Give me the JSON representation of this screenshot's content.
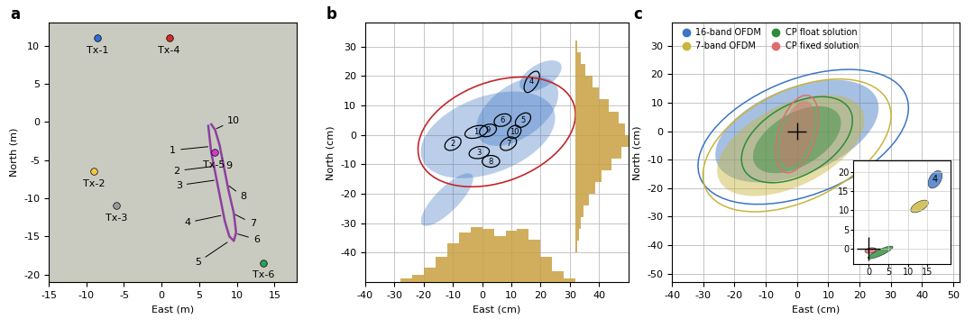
{
  "chart_data": [
    {
      "panel": "a",
      "type": "map",
      "xlabel": "East (m)",
      "ylabel": "North (m)",
      "xlim": [
        -15,
        18
      ],
      "ylim": [
        -21,
        13
      ],
      "xticks": [
        -15,
        -10,
        -5,
        0,
        5,
        10,
        15
      ],
      "yticks": [
        -20,
        -15,
        -10,
        -5,
        0,
        5,
        10
      ],
      "transmitters": [
        {
          "name": "Tx-1",
          "x": -8.5,
          "y": 11,
          "color": "#2e6fd6"
        },
        {
          "name": "Tx-4",
          "x": 1,
          "y": 11,
          "color": "#d62828"
        },
        {
          "name": "Tx-5",
          "x": 7,
          "y": -4,
          "color": "#d43ad4"
        },
        {
          "name": "Tx-2",
          "x": -9,
          "y": -6.5,
          "color": "#f2c744"
        },
        {
          "name": "Tx-3",
          "x": -6,
          "y": -11,
          "color": "#9a9a9a"
        },
        {
          "name": "Tx-6",
          "x": 13.5,
          "y": -18.5,
          "color": "#2ca05a"
        }
      ],
      "track": {
        "color": "#8e3fa0",
        "x": [
          6.2,
          6.6,
          7.2,
          7.8,
          8.4,
          9.0,
          9.6,
          9.9,
          9.6,
          8.9,
          8.3,
          7.7,
          7.1,
          6.6
        ],
        "y": [
          -0.5,
          -4,
          -7,
          -10,
          -13,
          -15,
          -15.6,
          -14.5,
          -12,
          -9,
          -6,
          -3,
          -1,
          -0.3
        ]
      },
      "track_labels": [
        {
          "text": "1",
          "x": 1.5,
          "y": -3.7,
          "target": [
            6.5,
            -3.2
          ]
        },
        {
          "text": "2",
          "x": 2.0,
          "y": -6.4,
          "target": [
            7.0,
            -5.8
          ]
        },
        {
          "text": "3",
          "x": 2.3,
          "y": -8.3,
          "target": [
            7.3,
            -7.6
          ]
        },
        {
          "text": "4",
          "x": 3.4,
          "y": -13.2,
          "target": [
            8.2,
            -12.2
          ]
        },
        {
          "text": "5",
          "x": 4.8,
          "y": -18.4,
          "target": [
            9.0,
            -15.6
          ]
        },
        {
          "text": "6",
          "x": 12.6,
          "y": -15.4,
          "target": [
            9.8,
            -14.6
          ]
        },
        {
          "text": "7",
          "x": 12.1,
          "y": -13.3,
          "target": [
            9.5,
            -12.0
          ]
        },
        {
          "text": "8",
          "x": 10.9,
          "y": -9.8,
          "target": [
            8.7,
            -8.2
          ]
        },
        {
          "text": "9",
          "x": 9.0,
          "y": -5.8,
          "target": [
            8.0,
            -4.8
          ]
        },
        {
          "text": "10",
          "x": 9.6,
          "y": 0.2,
          "target": [
            7.0,
            -1.0
          ]
        }
      ]
    },
    {
      "panel": "b",
      "type": "scatter",
      "xlabel": "East (cm)",
      "ylabel": "North (cm)",
      "xlim": [
        -40,
        50
      ],
      "ylim": [
        -50,
        38
      ],
      "xticks": [
        -40,
        -30,
        -20,
        -10,
        0,
        10,
        20,
        30,
        40
      ],
      "yticks": [
        -40,
        -30,
        -20,
        -10,
        0,
        10,
        20,
        30
      ],
      "grid": true,
      "color": "#3b75c4",
      "cloud": [
        {
          "center": [
            2,
            0
          ],
          "semi_axes": [
            24,
            13
          ],
          "angle": 20
        },
        {
          "center": [
            12,
            8
          ],
          "semi_axes": [
            16,
            9
          ],
          "angle": 35
        },
        {
          "center": [
            -12,
            -22
          ],
          "semi_axes": [
            12,
            4
          ],
          "angle": 45
        },
        {
          "center": [
            20,
            20
          ],
          "semi_axes": [
            8,
            4
          ],
          "angle": 30
        }
      ],
      "clusters": [
        {
          "label": "1",
          "center": [
            -2,
            1
          ],
          "semi_axes": [
            4,
            2
          ],
          "angle": 15
        },
        {
          "label": "2",
          "center": [
            -10,
            -3
          ],
          "semi_axes": [
            3,
            2
          ],
          "angle": 30
        },
        {
          "label": "3",
          "center": [
            -1,
            -6
          ],
          "semi_axes": [
            3.5,
            2
          ],
          "angle": 10
        },
        {
          "label": "4",
          "center": [
            17,
            18
          ],
          "semi_axes": [
            4,
            2
          ],
          "angle": 60
        },
        {
          "label": "5",
          "center": [
            14,
            5
          ],
          "semi_axes": [
            3,
            2
          ],
          "angle": 40
        },
        {
          "label": "6",
          "center": [
            7,
            5
          ],
          "semi_axes": [
            3,
            2
          ],
          "angle": 20
        },
        {
          "label": "7",
          "center": [
            9,
            -3
          ],
          "semi_axes": [
            3,
            2
          ],
          "angle": 30
        },
        {
          "label": "8",
          "center": [
            3,
            -9
          ],
          "semi_axes": [
            3,
            2
          ],
          "angle": 0
        },
        {
          "label": "9",
          "center": [
            2,
            1.5
          ],
          "semi_axes": [
            3,
            2
          ],
          "angle": 20
        },
        {
          "label": "10",
          "center": [
            11,
            1
          ],
          "semi_axes": [
            2.5,
            2
          ],
          "angle": 40
        }
      ],
      "overall_ellipse": {
        "center": [
          5,
          1
        ],
        "semi_axes": [
          28,
          17
        ],
        "angle": 20,
        "color": "#c0282d"
      },
      "hist_color": "#c8a040",
      "hist_x": {
        "bins": [
          -28,
          -24,
          -20,
          -16,
          -12,
          -8,
          -4,
          0,
          4,
          8,
          12,
          16,
          20,
          24,
          28,
          32
        ],
        "counts": [
          2,
          4,
          8,
          14,
          22,
          28,
          31,
          30,
          26,
          29,
          30,
          24,
          14,
          6,
          2
        ],
        "ylim": [
          0,
          32
        ]
      },
      "hist_y": {
        "bins": [
          -40,
          -36,
          -32,
          -28,
          -24,
          -20,
          -16,
          -12,
          -8,
          -4,
          0,
          4,
          8,
          12,
          16,
          20,
          24,
          28,
          32
        ],
        "counts": [
          1,
          2,
          3,
          5,
          8,
          12,
          16,
          22,
          28,
          32,
          30,
          26,
          20,
          14,
          10,
          6,
          3,
          1
        ],
        "xlim": [
          0,
          32
        ]
      }
    },
    {
      "panel": "c",
      "type": "scatter",
      "xlabel": "East (cm)",
      "ylabel": "North (cm)",
      "xlim": [
        -40,
        52
      ],
      "ylim": [
        -53,
        38
      ],
      "xticks": [
        -40,
        -30,
        -20,
        -10,
        0,
        10,
        20,
        30,
        40,
        50
      ],
      "yticks": [
        -50,
        -40,
        -30,
        -20,
        -10,
        0,
        10,
        20,
        30
      ],
      "grid": true,
      "legend": "upper left",
      "series": [
        {
          "name": "16-band OFDM",
          "color": "#3b75c4",
          "marker": "circle",
          "cloud": {
            "center": [
              0,
              0
            ],
            "semi_axes": [
              28,
              15
            ],
            "angle": 25
          },
          "ellipse": {
            "center": [
              2,
              -2
            ],
            "semi_axes": [
              36,
              20
            ],
            "angle": 25
          },
          "inset_ellipse": {
            "center": [
              17,
              18
            ],
            "semi_axes": [
              2.5,
              1.5
            ],
            "angle": 60
          },
          "inset_label": "4"
        },
        {
          "name": "7-band OFDM",
          "color": "#c9b53a",
          "marker": "circle",
          "cloud": {
            "center": [
              -2,
              -5
            ],
            "semi_axes": [
              26,
              14
            ],
            "angle": 30
          },
          "ellipse": {
            "center": [
              0,
              -5
            ],
            "semi_axes": [
              33,
              19
            ],
            "angle": 30
          },
          "inset_ellipse": {
            "center": [
              13,
              11
            ],
            "semi_axes": [
              2.5,
              1.2
            ],
            "angle": 30
          }
        },
        {
          "name": "CP float solution",
          "color": "#2e8b3a",
          "marker": "circle",
          "cloud": {
            "center": [
              0,
              -3
            ],
            "semi_axes": [
              16,
              9
            ],
            "angle": 35
          },
          "ellipse": {
            "center": [
              0,
              -3
            ],
            "semi_axes": [
              20,
              12
            ],
            "angle": 35
          },
          "inset_ellipse": {
            "center": [
              3,
              -1
            ],
            "semi_axes": [
              3.5,
              0.8
            ],
            "angle": 25
          }
        },
        {
          "name": "CP fixed solution",
          "color": "#e06c6c",
          "marker": "circle",
          "cloud": {
            "center": [
              0,
              -1
            ],
            "semi_axes": [
              12,
              5
            ],
            "angle": 75
          },
          "ellipse": {
            "center": [
              0,
              -1
            ],
            "semi_axes": [
              14,
              6
            ],
            "angle": 75
          },
          "inset_ellipse": {
            "center": [
              0.5,
              -0.5
            ],
            "semi_axes": [
              1.5,
              0.7
            ],
            "angle": 10
          }
        }
      ],
      "reference": {
        "x": 0,
        "y": 0,
        "xerr": 3,
        "yerr": 3,
        "color": "#000000"
      },
      "inset": {
        "xlim": [
          -4,
          21
        ],
        "ylim": [
          -4,
          23
        ],
        "xticks": [
          0,
          5,
          10,
          15
        ],
        "yticks": [
          0,
          5,
          10,
          15,
          20
        ]
      }
    }
  ]
}
